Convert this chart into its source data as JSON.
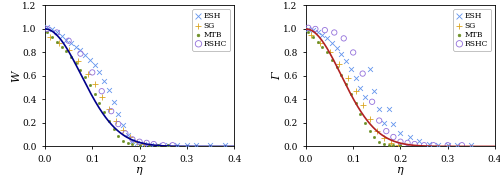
{
  "xlim": [
    0,
    0.4
  ],
  "ylim": [
    0,
    1.2
  ],
  "yticks": [
    0,
    0.2,
    0.4,
    0.6,
    0.8,
    1.0,
    1.2
  ],
  "xticks": [
    0,
    0.1,
    0.2,
    0.3,
    0.4
  ],
  "ylabel_left": "W",
  "ylabel_right": "Γ",
  "xlabel": "η",
  "curve_color_left": "#00008B",
  "curve_color_right": "#B22222",
  "ESH_color": "#6495ED",
  "SG_color": "#DAA520",
  "MTB_color": "#6B8E23",
  "RSHC_color": "#9370DB",
  "ESH_W_eta": [
    0.005,
    0.015,
    0.025,
    0.035,
    0.045,
    0.055,
    0.065,
    0.075,
    0.085,
    0.095,
    0.105,
    0.115,
    0.125,
    0.135,
    0.145,
    0.155,
    0.165,
    0.175,
    0.185,
    0.195,
    0.21,
    0.225,
    0.24,
    0.26,
    0.28,
    0.3,
    0.32,
    0.35,
    0.38
  ],
  "ESH_W_val": [
    1.02,
    1.0,
    0.97,
    0.94,
    0.91,
    0.88,
    0.85,
    0.82,
    0.78,
    0.74,
    0.69,
    0.63,
    0.56,
    0.48,
    0.38,
    0.28,
    0.18,
    0.1,
    0.05,
    0.03,
    0.02,
    0.01,
    0.01,
    0.01,
    0.01,
    0.01,
    0.01,
    0.01,
    0.01
  ],
  "SG_W_eta": [
    0.01,
    0.03,
    0.05,
    0.07,
    0.09,
    0.105,
    0.12,
    0.135,
    0.15,
    0.165,
    0.18,
    0.195,
    0.21
  ],
  "SG_W_val": [
    0.93,
    0.88,
    0.82,
    0.73,
    0.62,
    0.53,
    0.42,
    0.32,
    0.22,
    0.14,
    0.08,
    0.04,
    0.02
  ],
  "MTB_W_eta": [
    0.005,
    0.015,
    0.025,
    0.035,
    0.045,
    0.055,
    0.065,
    0.075,
    0.085,
    0.095,
    0.105,
    0.115,
    0.125,
    0.135,
    0.145,
    0.155,
    0.165,
    0.175,
    0.185,
    0.2,
    0.22,
    0.24,
    0.26
  ],
  "MTB_W_val": [
    0.97,
    0.93,
    0.89,
    0.85,
    0.81,
    0.76,
    0.71,
    0.65,
    0.59,
    0.52,
    0.45,
    0.37,
    0.29,
    0.22,
    0.15,
    0.09,
    0.05,
    0.03,
    0.02,
    0.01,
    0.01,
    0.01,
    0.01
  ],
  "RSHC_W_eta": [
    0.005,
    0.025,
    0.05,
    0.075,
    0.1,
    0.12,
    0.14,
    0.155,
    0.17,
    0.185,
    0.2,
    0.215,
    0.23,
    0.25,
    0.27
  ],
  "RSHC_W_val": [
    1.0,
    0.97,
    0.9,
    0.79,
    0.63,
    0.47,
    0.3,
    0.19,
    0.11,
    0.06,
    0.04,
    0.03,
    0.02,
    0.01,
    0.01
  ],
  "ESH_G_eta": [
    0.005,
    0.015,
    0.025,
    0.035,
    0.045,
    0.055,
    0.065,
    0.075,
    0.085,
    0.095,
    0.105,
    0.115,
    0.125,
    0.135,
    0.145,
    0.155,
    0.165,
    0.175,
    0.185,
    0.2,
    0.22,
    0.24,
    0.26,
    0.28,
    0.3,
    0.32,
    0.35
  ],
  "ESH_G_val": [
    1.0,
    0.99,
    0.97,
    0.95,
    0.92,
    0.88,
    0.84,
    0.79,
    0.73,
    0.66,
    0.58,
    0.5,
    0.42,
    0.66,
    0.47,
    0.32,
    0.2,
    0.32,
    0.19,
    0.11,
    0.08,
    0.05,
    0.02,
    0.01,
    0.01,
    0.01,
    0.01
  ],
  "SG_G_eta": [
    0.01,
    0.03,
    0.05,
    0.07,
    0.09,
    0.105,
    0.12,
    0.135,
    0.15,
    0.165,
    0.18,
    0.195
  ],
  "SG_G_val": [
    0.95,
    0.88,
    0.8,
    0.7,
    0.58,
    0.47,
    0.35,
    0.23,
    0.13,
    0.07,
    0.03,
    0.01
  ],
  "MTB_G_eta": [
    0.005,
    0.015,
    0.025,
    0.035,
    0.045,
    0.055,
    0.065,
    0.075,
    0.085,
    0.095,
    0.105,
    0.115,
    0.125,
    0.135,
    0.145,
    0.155,
    0.165,
    0.175,
    0.185,
    0.2
  ],
  "MTB_G_val": [
    0.97,
    0.93,
    0.89,
    0.85,
    0.8,
    0.74,
    0.68,
    0.61,
    0.53,
    0.45,
    0.37,
    0.28,
    0.2,
    0.13,
    0.08,
    0.04,
    0.02,
    0.01,
    0.01,
    0.01
  ],
  "RSHC_G_eta": [
    0.005,
    0.02,
    0.04,
    0.06,
    0.08,
    0.1,
    0.12,
    0.14,
    0.155,
    0.17,
    0.185,
    0.2,
    0.215,
    0.23,
    0.25,
    0.27,
    0.3,
    0.33
  ],
  "RSHC_G_val": [
    1.01,
    1.0,
    0.99,
    0.97,
    0.92,
    0.8,
    0.62,
    0.38,
    0.22,
    0.13,
    0.08,
    0.04,
    0.03,
    0.02,
    0.01,
    0.01,
    0.01,
    0.01
  ]
}
